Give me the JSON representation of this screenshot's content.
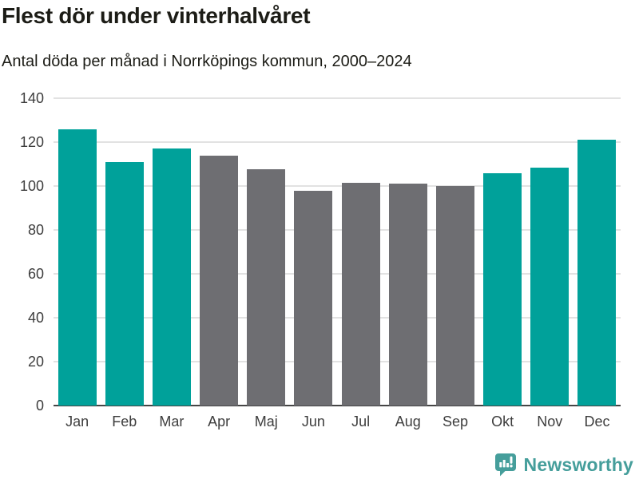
{
  "header": {
    "title": "Flest dör under vinterhalvåret",
    "subtitle": "Antal döda per månad i Norrköpings kommun, 2000–2024"
  },
  "chart_data": {
    "type": "bar",
    "title": "Flest dör under vinterhalvåret",
    "subtitle": "Antal döda per månad i Norrköpings kommun, 2000–2024",
    "categories": [
      "Jan",
      "Feb",
      "Mar",
      "Apr",
      "Maj",
      "Jun",
      "Jul",
      "Aug",
      "Sep",
      "Okt",
      "Nov",
      "Dec"
    ],
    "values": [
      126,
      111,
      117,
      114,
      107.5,
      98,
      101.5,
      101,
      100,
      106,
      108.5,
      121
    ],
    "bar_colors": [
      "#00a19a",
      "#00a19a",
      "#00a19a",
      "#6e6e72",
      "#6e6e72",
      "#6e6e72",
      "#6e6e72",
      "#6e6e72",
      "#6e6e72",
      "#00a19a",
      "#00a19a",
      "#00a19a"
    ],
    "highlight_color": "#00a19a",
    "base_color": "#6e6e72",
    "xlabel": "",
    "ylabel": "",
    "ylim": [
      0,
      140
    ],
    "yticks": [
      0,
      20,
      40,
      60,
      80,
      100,
      120,
      140
    ],
    "grid": true,
    "gridline_color": "#e2e2e2",
    "axis_line_color": "#454545",
    "legend": "none"
  },
  "footer": {
    "brand": "Newsworthy",
    "brand_color": "#459e9b",
    "brand_icon": "newsworthy-speech-bubble-chart-icon"
  }
}
